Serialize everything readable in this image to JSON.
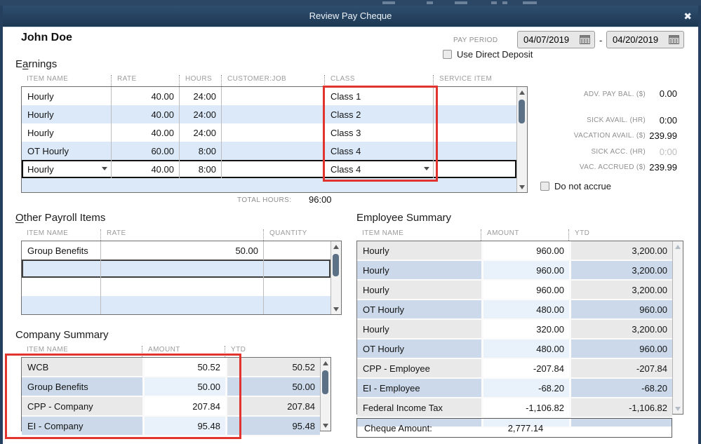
{
  "window": {
    "title": "Review Pay Cheque"
  },
  "colors": {
    "titlebar": "#24415f",
    "annotation": "#e1342e",
    "row_blue": "#dbe9f9",
    "scroll_thumb": "#5d7186"
  },
  "employee_name": "John Doe",
  "pay_period": {
    "label": "PAY PERIOD",
    "start": "04/07/2019",
    "separator": "-",
    "end": "04/20/2019"
  },
  "direct_deposit": {
    "label": "Use Direct Deposit",
    "checked": false
  },
  "earnings": {
    "title": "Earnings",
    "accel_index": 1,
    "headers": [
      "ITEM NAME",
      "RATE",
      "HOURS",
      "CUSTOMER:JOB",
      "CLASS",
      "SERVICE ITEM"
    ],
    "rows": [
      {
        "item": "Hourly",
        "rate": "40.00",
        "hours": "24:00",
        "customer_job": "",
        "class": "Class 1",
        "service_item": ""
      },
      {
        "item": "Hourly",
        "rate": "40.00",
        "hours": "24:00",
        "customer_job": "",
        "class": "Class 2",
        "service_item": ""
      },
      {
        "item": "Hourly",
        "rate": "40.00",
        "hours": "24:00",
        "customer_job": "",
        "class": "Class 3",
        "service_item": ""
      },
      {
        "item": "OT Hourly",
        "rate": "60.00",
        "hours": "8:00",
        "customer_job": "",
        "class": "Class 4",
        "service_item": ""
      },
      {
        "item": "Hourly",
        "rate": "40.00",
        "hours": "8:00",
        "customer_job": "",
        "class": "Class 4",
        "service_item": ""
      }
    ],
    "editing_row": 4,
    "total_hours_label": "TOTAL HOURS:",
    "total_hours": "96:00"
  },
  "side_panel": {
    "stats": [
      {
        "label": "ADV. PAY BAL. ($)",
        "value": "0.00",
        "muted": false
      },
      {
        "label": "SICK AVAIL. (HR)",
        "value": "0:00",
        "muted": false
      },
      {
        "label": "VACATION AVAIL. ($)",
        "value": "239.99",
        "muted": false
      },
      {
        "label": "SICK ACC. (HR)",
        "value": "0:00",
        "muted": true
      },
      {
        "label": "VAC. ACCRUED ($)",
        "value": "239.99",
        "muted": false
      }
    ],
    "do_not_accrue": {
      "label": "Do not accrue",
      "checked": false
    }
  },
  "other_payroll_items": {
    "title": "Other Payroll Items",
    "accel_index": 0,
    "headers": [
      "ITEM NAME",
      "RATE",
      "QUANTITY"
    ],
    "rows": [
      {
        "item": "Group Benefits",
        "rate": "50.00",
        "quantity": ""
      },
      {
        "item": "",
        "rate": "",
        "quantity": ""
      },
      {
        "item": "",
        "rate": "",
        "quantity": ""
      },
      {
        "item": "",
        "rate": "",
        "quantity": ""
      }
    ],
    "selected_row": 1
  },
  "employee_summary": {
    "title": "Employee Summary",
    "headers": [
      "ITEM NAME",
      "AMOUNT",
      "YTD"
    ],
    "rows": [
      {
        "item": "Hourly",
        "amount": "960.00",
        "ytd": "3,200.00"
      },
      {
        "item": "Hourly",
        "amount": "960.00",
        "ytd": "3,200.00"
      },
      {
        "item": "Hourly",
        "amount": "960.00",
        "ytd": "3,200.00"
      },
      {
        "item": "OT Hourly",
        "amount": "480.00",
        "ytd": "960.00"
      },
      {
        "item": "Hourly",
        "amount": "320.00",
        "ytd": "3,200.00"
      },
      {
        "item": "OT Hourly",
        "amount": "480.00",
        "ytd": "960.00"
      },
      {
        "item": "CPP - Employee",
        "amount": "-207.84",
        "ytd": "-207.84"
      },
      {
        "item": "EI - Employee",
        "amount": "-68.20",
        "ytd": "-68.20"
      },
      {
        "item": "Federal Income Tax",
        "amount": "-1,106.82",
        "ytd": "-1,106.82"
      }
    ],
    "selected_row": 0,
    "cheque_amount_label": "Cheque Amount:",
    "cheque_amount": "2,777.14"
  },
  "company_summary": {
    "title": "Company Summary",
    "headers": [
      "ITEM NAME",
      "AMOUNT",
      "YTD"
    ],
    "rows": [
      {
        "item": "WCB",
        "amount": "50.52",
        "ytd": "50.52"
      },
      {
        "item": "Group Benefits",
        "amount": "50.00",
        "ytd": "50.00"
      },
      {
        "item": "CPP - Company",
        "amount": "207.84",
        "ytd": "207.84"
      },
      {
        "item": "EI - Company",
        "amount": "95.48",
        "ytd": "95.48"
      }
    ],
    "selected_row": 2
  }
}
